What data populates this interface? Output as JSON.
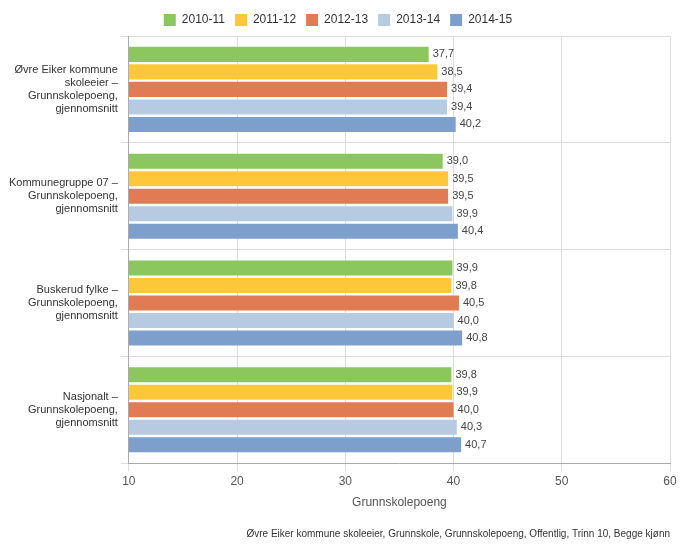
{
  "chart_data": {
    "type": "bar",
    "orientation": "horizontal",
    "subtitle": "Øvre Eiker kommune skoleeier, Grunnskole, Grunnskolepoeng, Offentlig, Trinn 10, Begge kjønn",
    "xlabel": "Grunnskolepoeng",
    "categories": [
      "Øvre Eiker kommune skoleeier – Grunnskolepoeng, gjennomsnitt",
      "Kommunegruppe 07 – Grunnskolepoeng, gjennomsnitt",
      "Buskerud fylke – Grunnskolepoeng, gjennomsnitt",
      "Nasjonalt – Grunnskolepoeng, gjennomsnitt"
    ],
    "series": [
      {
        "name": "2010-11",
        "color": "#8cc65f",
        "values": [
          37.7,
          39.0,
          39.9,
          39.8
        ],
        "value_labels": [
          "37,7",
          "39,0",
          "39,9",
          "39,8"
        ]
      },
      {
        "name": "2011-12",
        "color": "#fcc83a",
        "values": [
          38.5,
          39.5,
          39.8,
          39.9
        ],
        "value_labels": [
          "38,5",
          "39,5",
          "39,8",
          "39,9"
        ]
      },
      {
        "name": "2012-13",
        "color": "#e07b53",
        "values": [
          39.4,
          39.5,
          40.5,
          40.0
        ],
        "value_labels": [
          "39,4",
          "39,5",
          "40,5",
          "40,0"
        ]
      },
      {
        "name": "2013-14",
        "color": "#b6cbe2",
        "values": [
          39.4,
          39.9,
          40.0,
          40.3
        ],
        "value_labels": [
          "39,4",
          "39,9",
          "40,0",
          "40,3"
        ]
      },
      {
        "name": "2014-15",
        "color": "#7c9fcb",
        "values": [
          40.2,
          40.4,
          40.8,
          40.7
        ],
        "value_labels": [
          "40,2",
          "40,4",
          "40,8",
          "40,7"
        ]
      }
    ],
    "xlim": [
      10,
      60
    ],
    "xticks": [
      10,
      20,
      30,
      40,
      50,
      60
    ],
    "grid": true,
    "legend": "top",
    "data_labels": true
  }
}
